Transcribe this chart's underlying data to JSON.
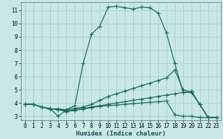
{
  "xlabel": "Humidex (Indice chaleur)",
  "background_color": "#c8e8e8",
  "grid_color": "#aacece",
  "line_color": "#1a6a5a",
  "xlim": [
    -0.5,
    23.5
  ],
  "ylim": [
    2.7,
    11.6
  ],
  "xticks": [
    0,
    1,
    2,
    3,
    4,
    5,
    6,
    7,
    8,
    9,
    10,
    11,
    12,
    13,
    14,
    15,
    16,
    17,
    18,
    19,
    20,
    21,
    22,
    23
  ],
  "yticks": [
    3,
    4,
    5,
    6,
    7,
    8,
    9,
    10,
    11
  ],
  "series1_x": [
    0,
    1,
    2,
    3,
    4,
    5,
    6,
    7,
    8,
    9,
    10,
    11,
    12,
    13,
    14,
    15,
    16,
    17,
    18,
    19,
    20,
    21,
    22
  ],
  "series1_y": [
    3.9,
    3.9,
    3.7,
    3.6,
    3.0,
    3.5,
    3.8,
    7.0,
    9.2,
    9.8,
    11.25,
    11.3,
    11.2,
    11.1,
    11.25,
    11.2,
    10.8,
    9.3,
    7.0,
    4.8,
    4.9,
    3.9,
    2.9
  ],
  "series2_x": [
    0,
    1,
    2,
    3,
    4,
    5,
    6,
    7,
    8,
    9,
    10,
    11,
    12,
    13,
    14,
    15,
    16,
    17,
    18,
    19,
    20,
    21,
    22,
    23
  ],
  "series2_y": [
    3.9,
    3.9,
    3.7,
    3.55,
    3.55,
    3.5,
    3.6,
    3.7,
    3.9,
    4.2,
    4.5,
    4.7,
    4.9,
    5.1,
    5.3,
    5.5,
    5.7,
    5.9,
    6.5,
    5.0,
    4.8,
    3.9,
    2.9,
    2.9
  ],
  "series3_x": [
    0,
    1,
    2,
    3,
    4,
    5,
    6,
    7,
    8,
    9,
    10,
    11,
    12,
    13,
    14,
    15,
    16,
    17,
    18,
    19,
    20,
    21,
    22,
    23
  ],
  "series3_y": [
    3.9,
    3.9,
    3.7,
    3.55,
    3.55,
    3.4,
    3.5,
    3.6,
    3.7,
    3.8,
    3.9,
    4.0,
    4.1,
    4.2,
    4.3,
    4.4,
    4.5,
    4.6,
    4.7,
    4.8,
    4.8,
    3.9,
    2.9,
    2.9
  ],
  "series4_x": [
    0,
    1,
    2,
    3,
    4,
    5,
    6,
    7,
    8,
    9,
    10,
    11,
    12,
    13,
    14,
    15,
    16,
    17,
    18,
    19,
    20,
    21,
    22,
    23
  ],
  "series4_y": [
    3.9,
    3.9,
    3.7,
    3.55,
    3.5,
    3.35,
    3.45,
    3.55,
    3.65,
    3.75,
    3.8,
    3.85,
    3.9,
    3.95,
    4.0,
    4.05,
    4.1,
    4.15,
    3.1,
    3.0,
    3.0,
    2.9,
    2.9,
    2.9
  ]
}
